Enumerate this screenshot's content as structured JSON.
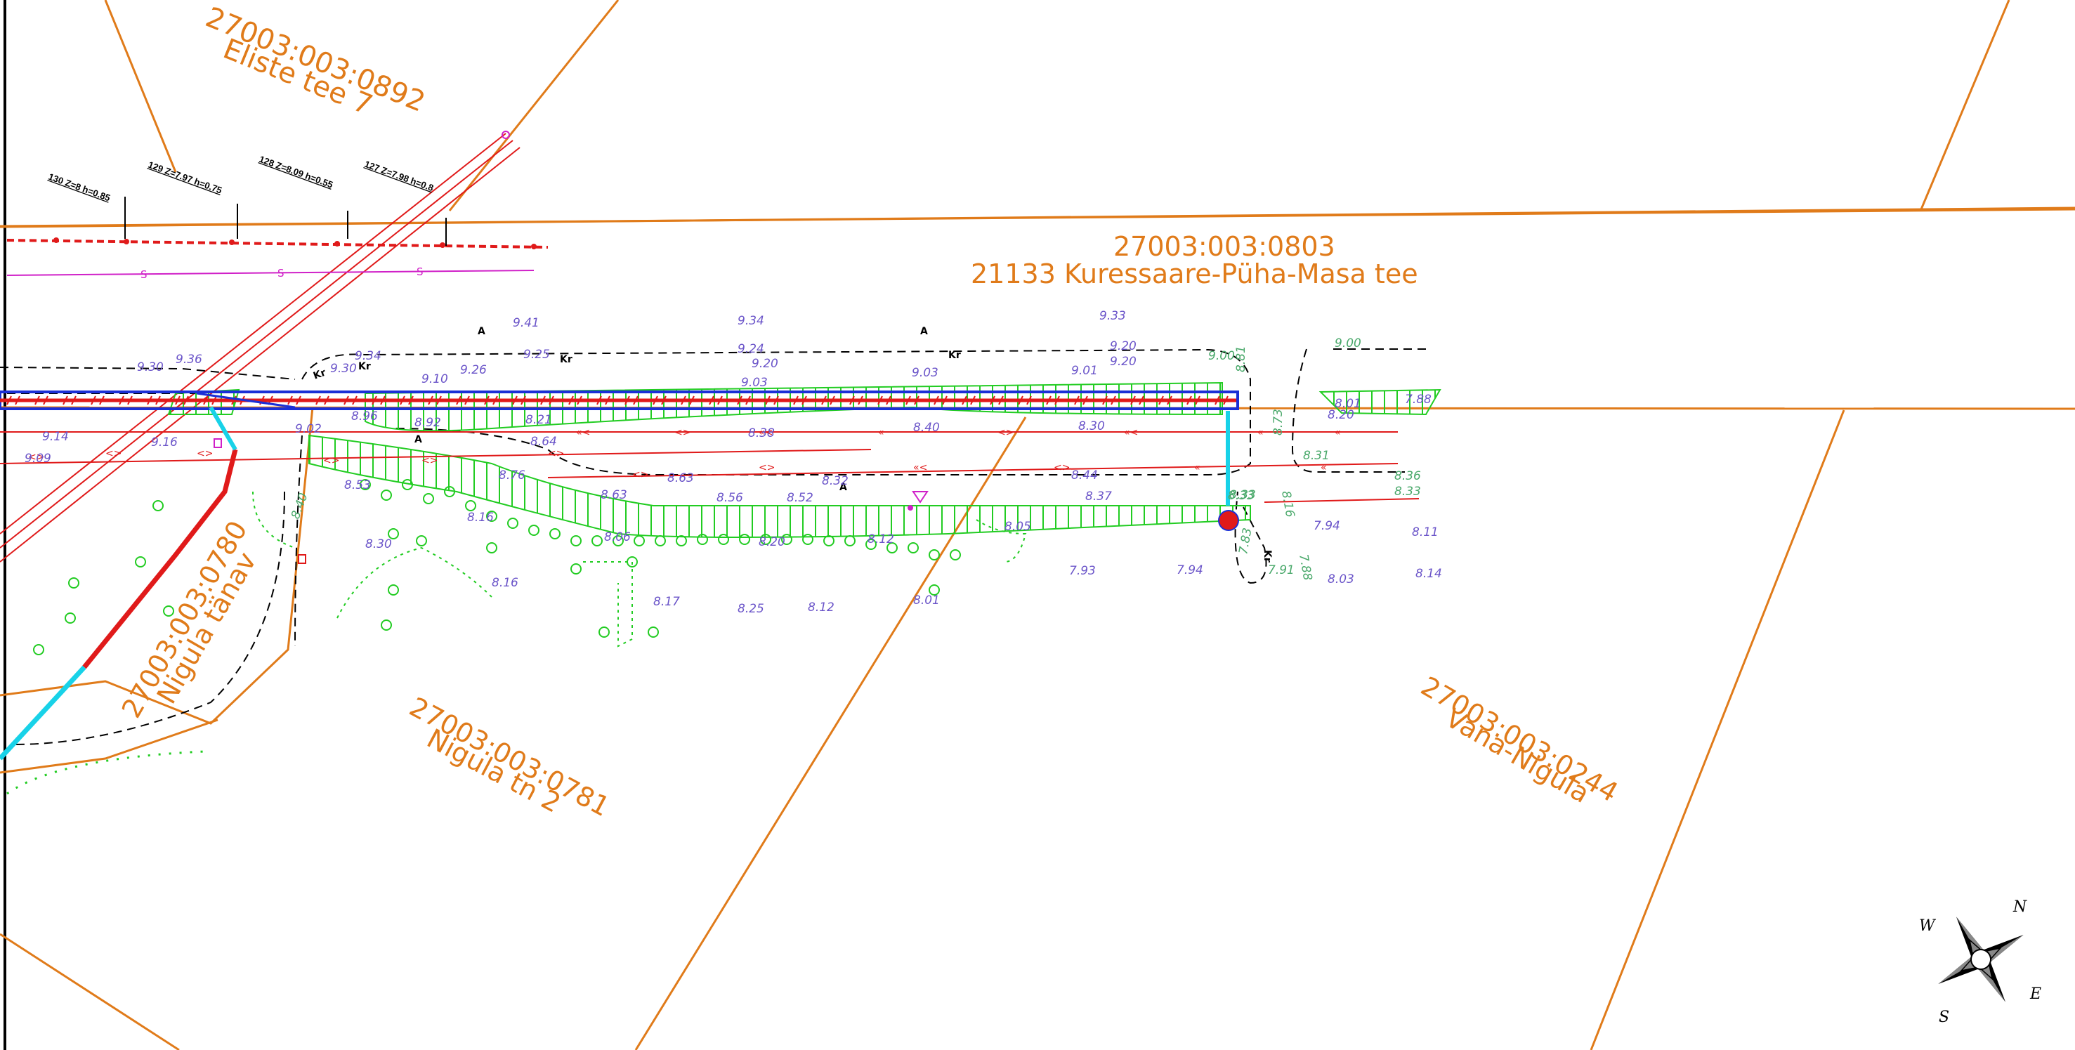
{
  "parcels": [
    {
      "id": "27003:003:0892",
      "name": "Eliste tee 7"
    },
    {
      "id": "27003:003:0803",
      "name": "21133 Kuressaare-Püha-Masa tee"
    },
    {
      "id": "27003:003:0780",
      "name": "Nigula tänav"
    },
    {
      "id": "27003:003:0781",
      "name": "Nigula tn 2"
    },
    {
      "id": "27003:003:0244",
      "name": "Vana-Nigula"
    }
  ],
  "boreholes": [
    {
      "label": "130 Z=8 h=0.85"
    },
    {
      "label": "129 Z=7.97 h=0.75"
    },
    {
      "label": "128 Z=8.09 h=0.55"
    },
    {
      "label": "127 Z=7.98 h=0.8"
    }
  ],
  "elevations": [
    "9.41",
    "9.34",
    "9.33",
    "9.25",
    "9.24",
    "9.20",
    "9.20",
    "9.20",
    "9.00",
    "9.00",
    "8.81",
    "9.36",
    "9.30",
    "9.34",
    "9.30",
    "9.26",
    "9.10",
    "9.03",
    "9.03",
    "9.01",
    "8.73",
    "8.01",
    "8.20",
    "7.88",
    "9.14",
    "9.16",
    "9.09",
    "9.02",
    "8.96",
    "8.92",
    "8.21",
    "8.38",
    "8.40",
    "8.30",
    "8.33",
    "8.33",
    "8.36",
    "8.64",
    "8.63",
    "8.32",
    "8.44",
    "8.76",
    "8.53",
    "8.63",
    "8.56",
    "8.52",
    "8.37",
    "8.31",
    "8.33",
    "8.40",
    "8.30",
    "8.16",
    "8.06",
    "8.20",
    "8.12",
    "8.05",
    "7.94",
    "8.11",
    "7.93",
    "7.94",
    "8.01",
    "8.03",
    "8.14",
    "8.16",
    "8.17",
    "8.25",
    "8.12",
    "8.01",
    "7.91",
    "7.83",
    "7.88",
    "8.16"
  ],
  "symbols": {
    "sewer": "S",
    "kr": "Kr",
    "a_mark": "A"
  },
  "compass": {
    "n": "N",
    "e": "E",
    "s": "S",
    "w": "W"
  },
  "colors": {
    "parcel": "#e07b1a",
    "road_edge": "#000000",
    "water": "#1a2fd6",
    "pipe_red": "#e01a1a",
    "slope": "#22cc22",
    "cyan": "#18d2e8",
    "sewer": "#d020c8",
    "elevation": "#6b55c9"
  }
}
